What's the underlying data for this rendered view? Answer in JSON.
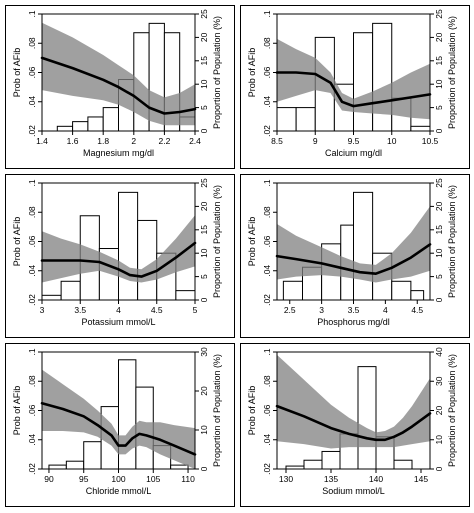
{
  "chart_data": [
    {
      "type": "line",
      "xlabel": "Magnesium mg/dl",
      "ylabel": "Prob of AFib",
      "y2label": "Proportion of Population (%)",
      "xlim": [
        1.4,
        2.4
      ],
      "ylim": [
        0.02,
        0.1
      ],
      "y2lim": [
        0,
        25
      ],
      "xticks": [
        1.4,
        1.6,
        1.8,
        2,
        2.2,
        2.4
      ],
      "xtick_labels": [
        "1.4",
        "1.6",
        "1.8",
        "2",
        "2.2",
        "2.4"
      ],
      "yticks": [
        0.02,
        0.04,
        0.06,
        0.08,
        0.1
      ],
      "ytick_labels": [
        ".02",
        ".04",
        ".06",
        ".08",
        ".1"
      ],
      "y2ticks": [
        0,
        5,
        10,
        15,
        20,
        25
      ],
      "y2tick_labels": [
        "0",
        "5",
        "10",
        "15",
        "20",
        "25"
      ],
      "histogram": {
        "edges": [
          1.5,
          1.6,
          1.7,
          1.8,
          1.9,
          2.0,
          2.1,
          2.2,
          2.3,
          2.4
        ],
        "values": [
          1,
          2,
          3,
          5,
          11,
          21,
          23,
          21,
          3
        ]
      },
      "curve": {
        "x": [
          1.4,
          1.6,
          1.8,
          1.9,
          2.0,
          2.1,
          2.2,
          2.3,
          2.4
        ],
        "y": [
          0.07,
          0.063,
          0.055,
          0.05,
          0.044,
          0.036,
          0.032,
          0.033,
          0.035
        ]
      },
      "ci_upper": [
        0.094,
        0.084,
        0.072,
        0.065,
        0.058,
        0.048,
        0.043,
        0.046,
        0.052
      ],
      "ci_lower": [
        0.048,
        0.044,
        0.041,
        0.038,
        0.033,
        0.027,
        0.024,
        0.024,
        0.024
      ]
    },
    {
      "type": "line",
      "xlabel": "Calcium mg/dl",
      "ylabel": "Prob of AFib",
      "y2label": "Proportion of Population (%)",
      "xlim": [
        8.5,
        10.5
      ],
      "ylim": [
        0.02,
        0.1
      ],
      "y2lim": [
        0,
        25
      ],
      "xticks": [
        8.5,
        9,
        9.5,
        10,
        10.5
      ],
      "xtick_labels": [
        "8.5",
        "9",
        "9.5",
        "10",
        "10.5"
      ],
      "yticks": [
        0.02,
        0.04,
        0.06,
        0.08,
        0.1
      ],
      "ytick_labels": [
        ".02",
        ".04",
        ".06",
        ".08",
        ".1"
      ],
      "y2ticks": [
        0,
        5,
        10,
        15,
        20,
        25
      ],
      "y2tick_labels": [
        "0",
        "5",
        "10",
        "15",
        "20",
        "25"
      ],
      "histogram": {
        "edges": [
          8.5,
          8.75,
          9.0,
          9.25,
          9.5,
          9.75,
          10.0,
          10.25,
          10.5
        ],
        "values": [
          5,
          5,
          20,
          10,
          21,
          23,
          7,
          1
        ]
      },
      "curve": {
        "x": [
          8.5,
          8.75,
          9.0,
          9.2,
          9.35,
          9.5,
          9.75,
          10.0,
          10.25,
          10.5
        ],
        "y": [
          0.06,
          0.06,
          0.059,
          0.053,
          0.04,
          0.037,
          0.039,
          0.041,
          0.043,
          0.045
        ]
      },
      "ci_upper": [
        0.083,
        0.076,
        0.07,
        0.06,
        0.046,
        0.042,
        0.047,
        0.053,
        0.06,
        0.066
      ],
      "ci_lower": [
        0.04,
        0.044,
        0.048,
        0.046,
        0.034,
        0.033,
        0.032,
        0.031,
        0.029,
        0.028
      ]
    },
    {
      "type": "line",
      "xlabel": "Potassium mmol/L",
      "ylabel": "Prob of AFib",
      "y2label": "Proportion of Population (%)",
      "xlim": [
        3,
        5
      ],
      "ylim": [
        0.02,
        0.1
      ],
      "y2lim": [
        0,
        25
      ],
      "xticks": [
        3,
        3.5,
        4,
        4.5,
        5
      ],
      "xtick_labels": [
        "3",
        "3.5",
        "4",
        "4.5",
        "5"
      ],
      "yticks": [
        0.02,
        0.04,
        0.06,
        0.08,
        0.1
      ],
      "ytick_labels": [
        ".02",
        ".04",
        ".06",
        ".08",
        ".1"
      ],
      "y2ticks": [
        0,
        5,
        10,
        15,
        20,
        25
      ],
      "y2tick_labels": [
        "0",
        "5",
        "10",
        "15",
        "20",
        "25"
      ],
      "histogram": {
        "edges": [
          3.0,
          3.25,
          3.5,
          3.75,
          4.0,
          4.25,
          4.5,
          4.75,
          5.0
        ],
        "values": [
          1,
          4,
          18,
          11,
          23,
          17,
          10,
          2
        ]
      },
      "curve": {
        "x": [
          3.0,
          3.25,
          3.5,
          3.75,
          4.0,
          4.15,
          4.3,
          4.5,
          4.75,
          5.0
        ],
        "y": [
          0.047,
          0.047,
          0.047,
          0.046,
          0.041,
          0.037,
          0.036,
          0.04,
          0.049,
          0.059
        ]
      },
      "ci_upper": [
        0.067,
        0.062,
        0.058,
        0.053,
        0.047,
        0.042,
        0.041,
        0.048,
        0.062,
        0.078
      ],
      "ci_lower": [
        0.032,
        0.035,
        0.038,
        0.04,
        0.036,
        0.033,
        0.032,
        0.034,
        0.039,
        0.043
      ]
    },
    {
      "type": "line",
      "xlabel": "Phosphorus mg/dl",
      "ylabel": "Prob of AFib",
      "y2label": "Proportion of Population (%)",
      "xlim": [
        2.3,
        4.7
      ],
      "ylim": [
        0.02,
        0.1
      ],
      "y2lim": [
        0,
        25
      ],
      "xticks": [
        2.5,
        3,
        3.5,
        4,
        4.5
      ],
      "xtick_labels": [
        "2.5",
        "3",
        "3.5",
        "4",
        "4.5"
      ],
      "yticks": [
        0.02,
        0.04,
        0.06,
        0.08,
        0.1
      ],
      "ytick_labels": [
        ".02",
        ".04",
        ".06",
        ".08",
        ".1"
      ],
      "y2ticks": [
        0,
        5,
        10,
        15,
        20,
        25
      ],
      "y2tick_labels": [
        "0",
        "5",
        "10",
        "15",
        "20",
        "25"
      ],
      "histogram": {
        "edges": [
          2.4,
          2.7,
          3.0,
          3.3,
          3.5,
          3.8,
          4.1,
          4.4,
          4.6
        ],
        "values": [
          4,
          7,
          12,
          16,
          23,
          10,
          4,
          2
        ]
      },
      "curve": {
        "x": [
          2.3,
          2.6,
          3.0,
          3.3,
          3.6,
          3.85,
          4.1,
          4.4,
          4.7
        ],
        "y": [
          0.05,
          0.048,
          0.045,
          0.042,
          0.039,
          0.038,
          0.042,
          0.049,
          0.058
        ]
      },
      "ci_upper": [
        0.072,
        0.064,
        0.056,
        0.05,
        0.045,
        0.044,
        0.052,
        0.066,
        0.084
      ],
      "ci_lower": [
        0.034,
        0.036,
        0.037,
        0.036,
        0.034,
        0.032,
        0.034,
        0.036,
        0.04
      ]
    },
    {
      "type": "line",
      "xlabel": "Chloride mmol/L",
      "ylabel": "Prob of AFib",
      "y2label": "Proportion of Population (%)",
      "xlim": [
        89,
        111
      ],
      "ylim": [
        0.02,
        0.1
      ],
      "y2lim": [
        0,
        30
      ],
      "xticks": [
        90,
        95,
        100,
        105,
        110
      ],
      "xtick_labels": [
        "90",
        "95",
        "100",
        "105",
        "110"
      ],
      "yticks": [
        0.02,
        0.04,
        0.06,
        0.08,
        0.1
      ],
      "ytick_labels": [
        ".02",
        ".04",
        ".06",
        ".08",
        ".1"
      ],
      "y2ticks": [
        0,
        10,
        20,
        30
      ],
      "y2tick_labels": [
        "0",
        "10",
        "20",
        "30"
      ],
      "histogram": {
        "edges": [
          90,
          92.5,
          95,
          97.5,
          100,
          102.5,
          105,
          107.5,
          110
        ],
        "values": [
          1,
          2,
          7,
          16,
          28,
          21,
          6,
          1
        ]
      },
      "curve": {
        "x": [
          89,
          92,
          95,
          97,
          99,
          100,
          101,
          102,
          103,
          104,
          106,
          108,
          111
        ],
        "y": [
          0.065,
          0.061,
          0.056,
          0.05,
          0.043,
          0.036,
          0.036,
          0.041,
          0.044,
          0.043,
          0.04,
          0.036,
          0.03
        ]
      },
      "ci_upper": [
        0.088,
        0.078,
        0.068,
        0.06,
        0.051,
        0.043,
        0.043,
        0.049,
        0.053,
        0.052,
        0.052,
        0.05,
        0.048
      ],
      "ci_lower": [
        0.046,
        0.046,
        0.045,
        0.042,
        0.036,
        0.03,
        0.03,
        0.034,
        0.036,
        0.035,
        0.03,
        0.026,
        0.02
      ]
    },
    {
      "type": "line",
      "xlabel": "Sodium mmol/L",
      "ylabel": "Prob of AFib",
      "y2label": "Proportion of Population (%)",
      "xlim": [
        129,
        146
      ],
      "ylim": [
        0.02,
        0.1
      ],
      "y2lim": [
        0,
        40
      ],
      "xticks": [
        130,
        135,
        140,
        145
      ],
      "xtick_labels": [
        "130",
        "135",
        "140",
        "145"
      ],
      "yticks": [
        0.02,
        0.04,
        0.06,
        0.08,
        0.1
      ],
      "ytick_labels": [
        ".02",
        ".04",
        ".06",
        ".08",
        ".1"
      ],
      "y2ticks": [
        0,
        10,
        20,
        30,
        40
      ],
      "y2tick_labels": [
        "0",
        "10",
        "20",
        "30",
        "40"
      ],
      "histogram": {
        "edges": [
          130,
          132,
          134,
          136,
          138,
          140,
          142,
          144
        ],
        "values": [
          1,
          3,
          6,
          12,
          35,
          11,
          3
        ]
      },
      "curve": {
        "x": [
          129,
          132,
          135,
          137,
          139,
          140,
          141,
          142,
          143,
          144,
          146
        ],
        "y": [
          0.063,
          0.056,
          0.048,
          0.044,
          0.041,
          0.04,
          0.04,
          0.042,
          0.045,
          0.049,
          0.058
        ]
      },
      "ci_upper": [
        0.098,
        0.081,
        0.064,
        0.055,
        0.048,
        0.045,
        0.046,
        0.049,
        0.055,
        0.063,
        0.082
      ],
      "ci_lower": [
        0.039,
        0.037,
        0.034,
        0.035,
        0.035,
        0.035,
        0.035,
        0.035,
        0.036,
        0.037,
        0.039
      ]
    }
  ]
}
